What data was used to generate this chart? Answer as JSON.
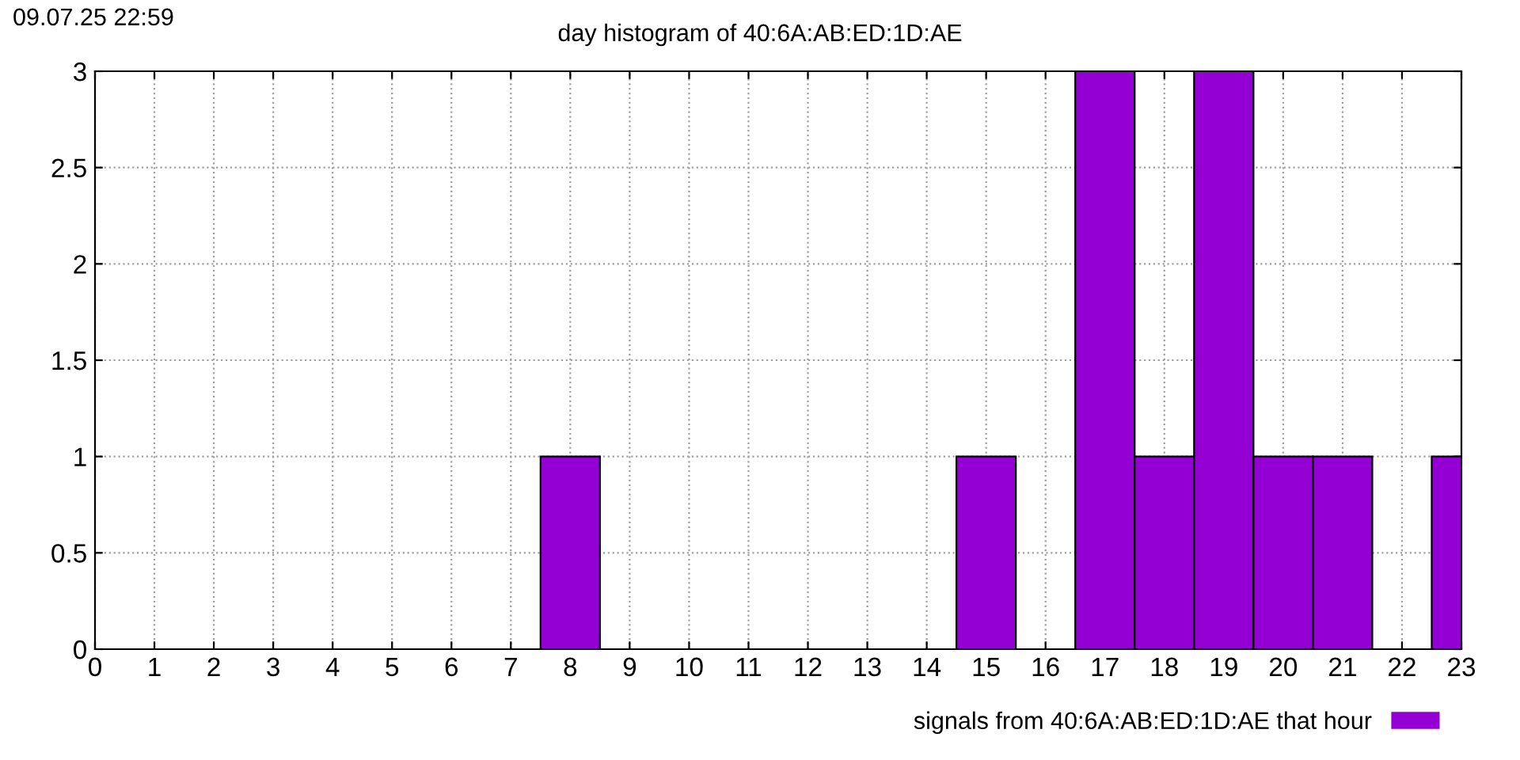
{
  "chart_data": {
    "type": "bar",
    "title": "day histogram of 40:6A:AB:ED:1D:AE",
    "annotations": [
      "09.07.25 22:59"
    ],
    "x": [
      0,
      1,
      2,
      3,
      4,
      5,
      6,
      7,
      8,
      9,
      10,
      11,
      12,
      13,
      14,
      15,
      16,
      17,
      18,
      19,
      20,
      21,
      22,
      23
    ],
    "series": [
      {
        "name": "signals from 40:6A:AB:ED:1D:AE that hour",
        "color": "#9400d3",
        "values": [
          0,
          0,
          0,
          0,
          0,
          0,
          0,
          0,
          1,
          0,
          0,
          0,
          0,
          0,
          0,
          1,
          0,
          3,
          1,
          3,
          1,
          1,
          0,
          1
        ]
      }
    ],
    "xlim": [
      0,
      23
    ],
    "xticks": [
      0,
      1,
      2,
      3,
      4,
      5,
      6,
      7,
      8,
      9,
      10,
      11,
      12,
      13,
      14,
      15,
      16,
      17,
      18,
      19,
      20,
      21,
      22,
      23
    ],
    "ylim": [
      0,
      3
    ],
    "yticks": [
      0,
      0.5,
      1,
      1.5,
      2,
      2.5,
      3
    ],
    "grid": true,
    "legend": "bottom right"
  }
}
